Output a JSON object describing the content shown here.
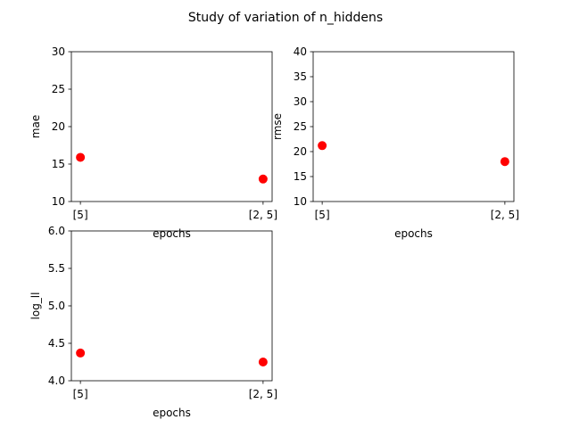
{
  "figure": {
    "suptitle": "Study of variation of n_hiddens"
  },
  "chart_data": [
    {
      "type": "scatter",
      "title": "",
      "xlabel": "epochs",
      "ylabel": "mae",
      "categories": [
        "[5]",
        "[2, 5]"
      ],
      "values": [
        15.9,
        13.0
      ],
      "ylim": [
        10,
        30
      ],
      "yticks": [
        10,
        15,
        20,
        25,
        30
      ],
      "grid": false,
      "marker_color": "#ff0000"
    },
    {
      "type": "scatter",
      "title": "",
      "xlabel": "epochs",
      "ylabel": "rmse",
      "categories": [
        "[5]",
        "[2, 5]"
      ],
      "values": [
        21.2,
        18.0
      ],
      "ylim": [
        10,
        40
      ],
      "yticks": [
        10,
        15,
        20,
        25,
        30,
        35,
        40
      ],
      "grid": false,
      "marker_color": "#ff0000"
    },
    {
      "type": "scatter",
      "title": "",
      "xlabel": "epochs",
      "ylabel": "log_ll",
      "categories": [
        "[5]",
        "[2, 5]"
      ],
      "values": [
        4.37,
        4.25
      ],
      "ylim": [
        4.0,
        6.0
      ],
      "yticks": [
        4.0,
        4.5,
        5.0,
        5.5,
        6.0
      ],
      "grid": false,
      "marker_color": "#ff0000"
    }
  ]
}
